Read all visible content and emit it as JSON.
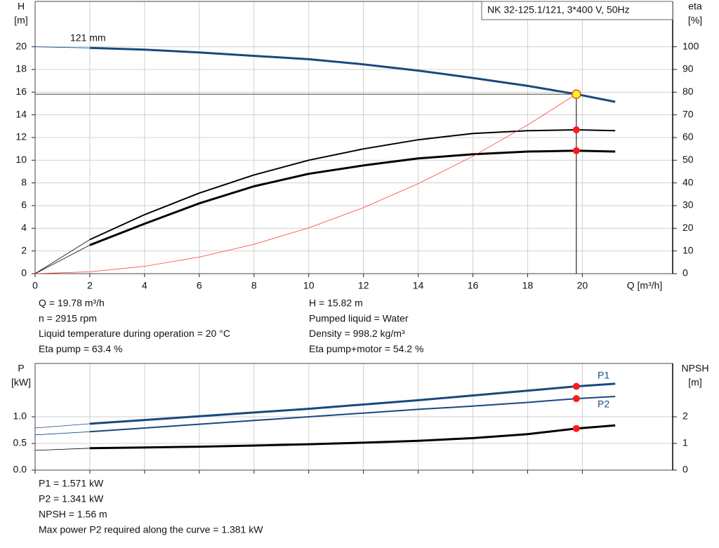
{
  "chart_data": [
    {
      "type": "line",
      "title": "NK 32-125.1/121, 3*400 V, 50Hz",
      "y_label": "H",
      "y_unit": "[m]",
      "y2_label": "eta",
      "y2_unit": "[%]",
      "x_label": "Q [m³/h]",
      "x": [
        0,
        2,
        4,
        6,
        8,
        10,
        12,
        14,
        16,
        18,
        19.78,
        21.2
      ],
      "xlim": [
        0,
        23.3
      ],
      "xticks": [
        0,
        2,
        4,
        6,
        8,
        10,
        12,
        14,
        16,
        18,
        20
      ],
      "ylim": [
        0,
        24
      ],
      "yticks": [
        0,
        2,
        4,
        6,
        8,
        10,
        12,
        14,
        16,
        18,
        20
      ],
      "y2lim": [
        0,
        120
      ],
      "y2ticks": [
        0,
        10,
        20,
        30,
        40,
        50,
        60,
        70,
        80,
        90,
        100
      ],
      "grid": true,
      "series": [
        {
          "name": "121 mm",
          "color": "#174a7e",
          "values": [
            20,
            19.9,
            19.75,
            19.5,
            19.2,
            18.9,
            18.45,
            17.9,
            17.25,
            16.55,
            15.82,
            15.15
          ]
        },
        {
          "color": "#000000",
          "axis": "y2",
          "values": [
            0,
            15,
            26,
            35.5,
            43.5,
            50,
            55,
            59,
            61.8,
            63,
            63.4,
            63
          ]
        },
        {
          "color": "#000000",
          "axis": "y2",
          "values": [
            0,
            12.6,
            22,
            31,
            38.5,
            44,
            47.7,
            50.8,
            52.6,
            53.8,
            54.2,
            53.8
          ]
        },
        {
          "color": "#ff3b3b",
          "values": [
            0,
            0.16,
            0.65,
            1.46,
            2.59,
            4.04,
            5.82,
            7.93,
            10.35,
            13.1,
            15.82,
            null
          ]
        }
      ],
      "operating_point": {
        "x": 19.78,
        "h": 15.82,
        "eta_pump": 63.4,
        "eta_total": 54.2
      },
      "info": {
        "left": [
          "Q = 19.78 m³/h",
          "n = 2915 rpm",
          "Liquid temperature during operation = 20 °C",
          "Eta pump = 63.4 %"
        ],
        "right": [
          "H = 15.82 m",
          "Pumped liquid = Water",
          "Density = 998.2 kg/m³",
          "Eta pump+motor = 54.2 %"
        ]
      }
    },
    {
      "type": "line",
      "y_label": "P",
      "y_unit": "[kW]",
      "y2_label": "NPSH",
      "y2_unit": "[m]",
      "x": [
        0,
        2,
        4,
        6,
        8,
        10,
        12,
        14,
        16,
        18,
        19.78,
        21.2
      ],
      "xlim": [
        0,
        23.3
      ],
      "xticks": [
        0,
        2,
        4,
        6,
        8,
        10,
        12,
        14,
        16,
        18,
        20
      ],
      "ylim": [
        0,
        2
      ],
      "yticks": [
        {
          "value": 0,
          "label": "0.0"
        },
        {
          "value": 0.5,
          "label": "0.5"
        },
        {
          "value": 1,
          "label": "1.0"
        }
      ],
      "y2lim": [
        0,
        4
      ],
      "y2ticks": [
        0,
        1,
        2
      ],
      "grid": true,
      "series": [
        {
          "name": "P1",
          "color": "#174a7e",
          "values": [
            0.79,
            0.87,
            0.94,
            1.01,
            1.08,
            1.15,
            1.23,
            1.31,
            1.4,
            1.49,
            1.571,
            1.62
          ]
        },
        {
          "name": "P2",
          "color": "#174a7e",
          "values": [
            0.66,
            0.72,
            0.79,
            0.86,
            0.93,
            1.0,
            1.07,
            1.14,
            1.2,
            1.27,
            1.341,
            1.381
          ]
        },
        {
          "color": "#000000",
          "axis": "y2",
          "values": [
            0.74,
            0.82,
            0.85,
            0.88,
            0.92,
            0.97,
            1.03,
            1.1,
            1.2,
            1.35,
            1.56,
            1.68
          ]
        }
      ],
      "operating_point": {
        "x": 19.78,
        "p1": 1.571,
        "p2": 1.341,
        "npsh": 1.56
      },
      "info": {
        "left": [
          "P1 = 1.571 kW",
          "P2 = 1.341 kW",
          "NPSH = 1.56 m",
          "Max power P2 required along the curve = 1.381 kW"
        ]
      }
    }
  ]
}
